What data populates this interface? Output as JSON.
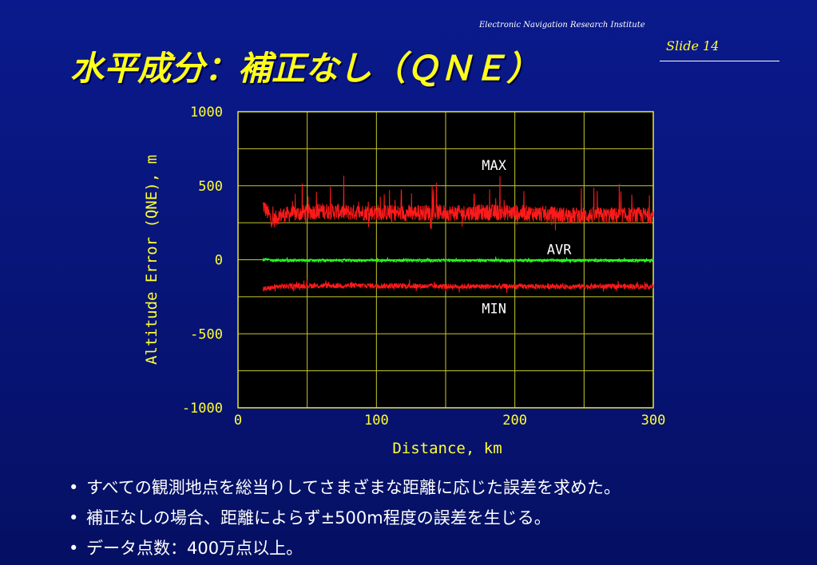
{
  "header": {
    "institute": "Electronic Navigation Research Institute",
    "slide_label": "Slide 14"
  },
  "title": "水平成分：補正なし（ＱＮＥ）",
  "chart_data": {
    "type": "line",
    "title": "",
    "xlabel": "Distance, km",
    "ylabel": "Altitude Error (QNE), m",
    "xlim": [
      0,
      300
    ],
    "ylim": [
      -1000,
      1000
    ],
    "x_ticks": [
      0,
      100,
      200,
      300
    ],
    "y_ticks": [
      1000,
      500,
      0,
      -500,
      -1000
    ],
    "grid": true,
    "background": "#000000",
    "grid_color": "#c8c832",
    "series": [
      {
        "name": "MAX",
        "color": "#ff1a1a",
        "x": [
          18,
          25,
          30,
          40,
          50,
          60,
          80,
          100,
          120,
          140,
          160,
          180,
          200,
          220,
          240,
          260,
          280,
          300
        ],
        "y": [
          370,
          260,
          300,
          310,
          320,
          330,
          320,
          320,
          315,
          320,
          315,
          320,
          318,
          310,
          300,
          300,
          300,
          300
        ]
      },
      {
        "name": "AVR",
        "color": "#22ff22",
        "x": [
          18,
          30,
          50,
          100,
          150,
          200,
          250,
          300
        ],
        "y": [
          0,
          -5,
          -5,
          -5,
          -5,
          -5,
          -5,
          -5
        ]
      },
      {
        "name": "MIN",
        "color": "#ff1a1a",
        "x": [
          18,
          30,
          50,
          100,
          150,
          200,
          250,
          300
        ],
        "y": [
          -200,
          -180,
          -175,
          -175,
          -180,
          -180,
          -180,
          -180
        ]
      }
    ],
    "annotations": [
      {
        "text": "MAX",
        "x": 185,
        "y": 640
      },
      {
        "text": "AVR",
        "x": 232,
        "y": 70
      },
      {
        "text": "MIN",
        "x": 185,
        "y": -330
      }
    ]
  },
  "bullets": [
    "すべての観測地点を総当りしてさまざまな距離に応じた誤差を求めた。",
    "補正なしの場合、距離によらず±500m程度の誤差を生じる。",
    "データ点数：400万点以上。"
  ],
  "bullet_marker": "•"
}
